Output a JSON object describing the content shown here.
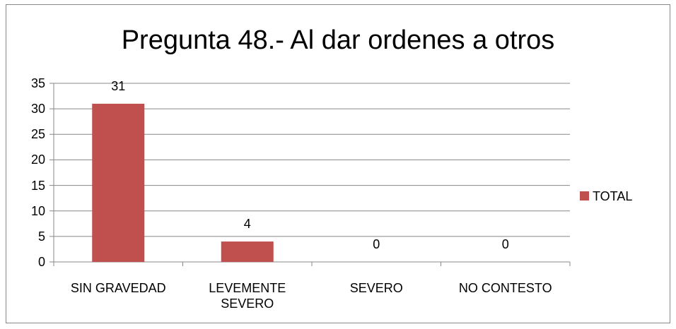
{
  "chart_data": {
    "type": "bar",
    "title": "Pregunta 48.- Al dar ordenes a otros",
    "categories": [
      "SIN GRAVEDAD",
      "LEVEMENTE SEVERO",
      "SEVERO",
      "NO CONTESTO"
    ],
    "series": [
      {
        "name": "TOTAL",
        "color": "#c0504d",
        "values": [
          31,
          4,
          0,
          0
        ]
      }
    ],
    "ylim": [
      0,
      35
    ],
    "yticks": [
      0,
      5,
      10,
      15,
      20,
      25,
      30,
      35
    ],
    "grid": true,
    "legend": "right"
  }
}
